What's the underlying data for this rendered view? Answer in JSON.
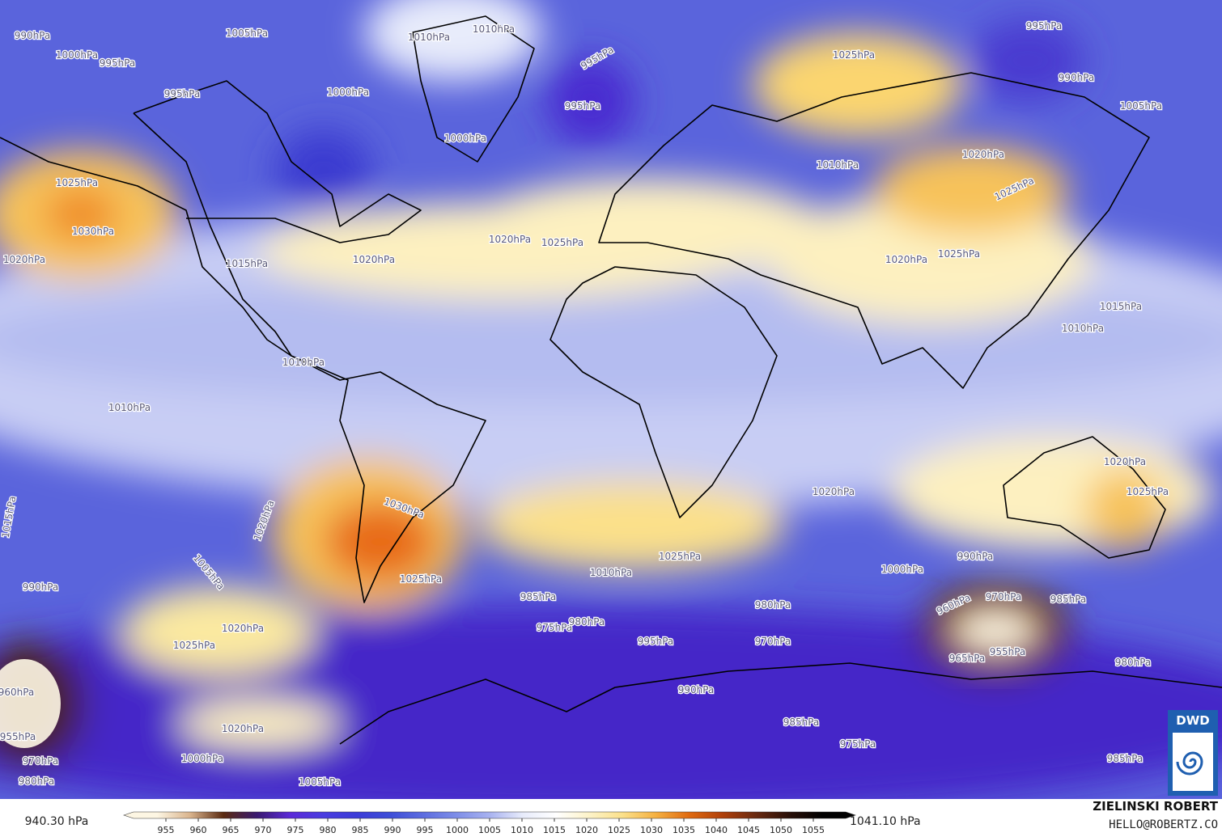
{
  "map": {
    "isobar_labels": [
      "1000hPa",
      "1005hPa",
      "995hPa",
      "1010hPa",
      "1010hPa",
      "995hPa",
      "990hPa",
      "1000hPa",
      "1000hPa",
      "995hPa",
      "995hPa",
      "1025hPa",
      "995hPa",
      "990hPa",
      "1005hPa",
      "1025hPa",
      "1030hPa",
      "1020hPa",
      "1015hPa",
      "1020hPa",
      "1020hPa",
      "1025hPa",
      "1010hPa",
      "1020hPa",
      "1025hPa",
      "1020hPa",
      "1025hPa",
      "1015hPa",
      "1010hPa",
      "1010hPa",
      "1010hPa",
      "1020hPa",
      "1030hPa",
      "1015hPa",
      "1020hPa",
      "1020hPa",
      "1025hPa",
      "1005hPa",
      "1025hPa",
      "1025hPa",
      "1010hPa",
      "1000hPa",
      "990hPa",
      "985hPa",
      "975hPa",
      "980hPa",
      "980hPa",
      "970hPa",
      "960hPa",
      "970hPa",
      "985hPa",
      "955hPa",
      "990hPa",
      "1025hPa",
      "1020hPa",
      "980hPa",
      "965hPa",
      "960hPa",
      "955hPa",
      "970hPa",
      "980hPa",
      "1000hPa",
      "995hPa",
      "1005hPa",
      "1020hPa",
      "990hPa",
      "985hPa",
      "975hPa",
      "985hPa"
    ]
  },
  "colorbar": {
    "min_label": "940.30 hPa",
    "max_label": "1041.10 hPa",
    "lim": [
      950,
      1060
    ],
    "ticks": [
      955,
      960,
      965,
      970,
      975,
      980,
      985,
      990,
      995,
      1000,
      1005,
      1010,
      1015,
      1020,
      1025,
      1030,
      1035,
      1040,
      1045,
      1050,
      1055
    ],
    "colors": [
      "#fdf6e3",
      "#d9b38c",
      "#5a2a10",
      "#3a1a70",
      "#5b2ad8",
      "#4a3ce0",
      "#3c3cd8",
      "#3e4ed8",
      "#5c6ce0",
      "#7e8ee8",
      "#a8b2f0",
      "#e8ecfb",
      "#ffffff",
      "#fdf3c8",
      "#fbe08a",
      "#f5b040",
      "#e06a10",
      "#b0400a",
      "#6a2a10",
      "#2a1008",
      "#000000"
    ]
  },
  "credits": {
    "author": "ZIELINSKI ROBERT",
    "contact": "HELLO@ROBERTZ.CO",
    "logo": "DWD"
  }
}
